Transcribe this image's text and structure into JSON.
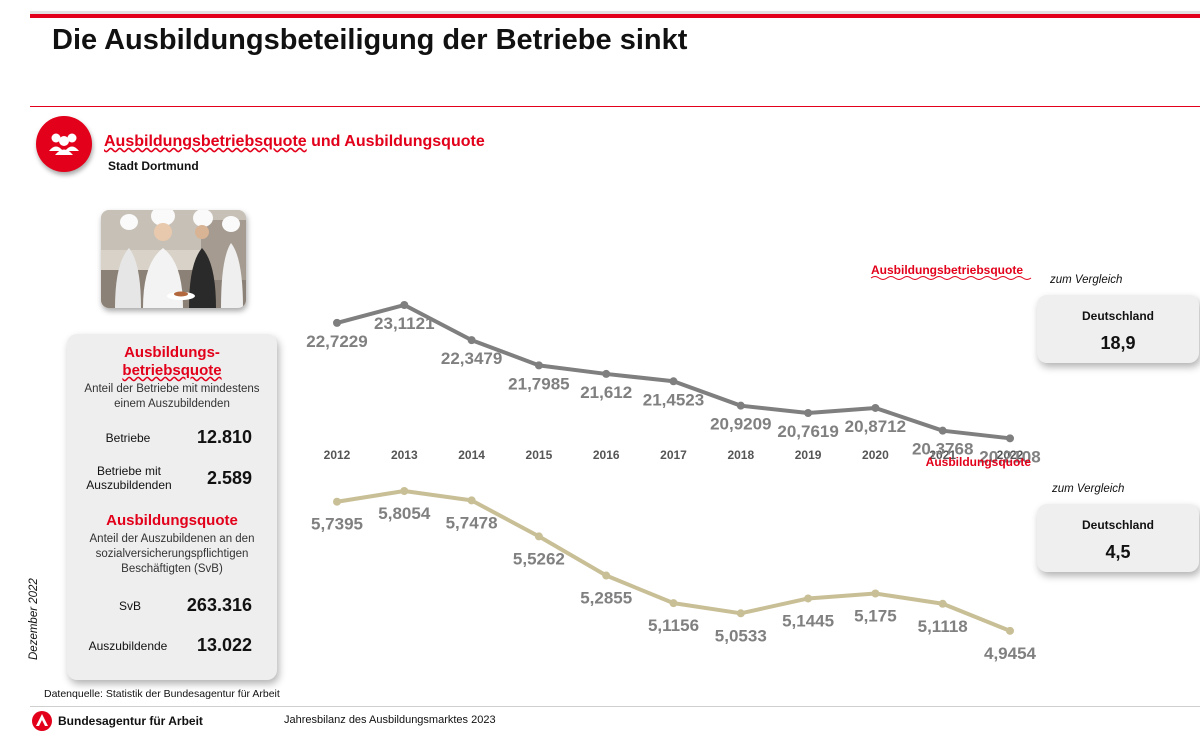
{
  "page": {
    "title": "Die Ausbildungsbeteiligung der Betriebe sinkt",
    "section_title_part1": "Ausbildungsbetriebsquote",
    "section_title_part2": " und Ausbildungsquote",
    "section_subtitle": "Stadt Dortmund",
    "date_note": "Dezember 2022",
    "source": "Datenquelle: Statistik der Bundesagentur für Arbeit",
    "footer_org": "Bundesagentur für Arbeit",
    "footer_doc": "Jahresbilanz des Ausbildungsmarktes 2023",
    "colors": {
      "brand_red": "#e2001a",
      "series1": "#7f7f7f",
      "series2": "#c9bf96"
    },
    "icons": [
      "people-group-icon",
      "chef-photo",
      "ba-logo-icon"
    ]
  },
  "panel": {
    "head1": "Ausbildungs-",
    "head1b": "betriebsquote",
    "desc1a": "Anteil der Betriebe mit mindestens",
    "desc1b": "einem Auszubildenden",
    "row1_label": "Betriebe",
    "row1_value": "12.810",
    "row2_label_a": "Betriebe mit",
    "row2_label_b": "Auszubildenden",
    "row2_value": "2.589",
    "head2": "Ausbildungsquote",
    "desc2a": "Anteil der Auszubildenen an den",
    "desc2b": "sozialversicherungspflichtigen",
    "desc2c": "Beschäftigten (SvB)",
    "row3_label": "SvB",
    "row3_value": "263.316",
    "row4_label": "Auszubildende",
    "row4_value": "13.022"
  },
  "comparison": [
    {
      "label": "zum Vergleich",
      "name": "Deutschland",
      "value": "18,9"
    },
    {
      "label": "zum Vergleich",
      "name": "Deutschland",
      "value": "4,5"
    }
  ],
  "chart_data": {
    "type": "line",
    "categories": [
      "2012",
      "2013",
      "2014",
      "2015",
      "2016",
      "2017",
      "2018",
      "2019",
      "2020",
      "2021",
      "2022"
    ],
    "series": [
      {
        "name": "Ausbildungsbetriebsquote",
        "values": [
          22.7229,
          23.1121,
          22.3479,
          21.7985,
          21.612,
          21.4523,
          20.9209,
          20.7619,
          20.8712,
          20.3768,
          20.2108
        ],
        "labels": [
          "22,7229",
          "23,1121",
          "22,3479",
          "21,7985",
          "21,612",
          "21,4523",
          "20,9209",
          "20,7619",
          "20,8712",
          "20,3768",
          "20,2108"
        ],
        "color": "#7f7f7f"
      },
      {
        "name": "Ausbildungsquote",
        "values": [
          5.7395,
          5.8054,
          5.7478,
          5.5262,
          5.2855,
          5.1156,
          5.0533,
          5.1445,
          5.175,
          5.1118,
          4.9454
        ],
        "labels": [
          "5,7395",
          "5,8054",
          "5,7478",
          "5,5262",
          "5,2855",
          "5,1156",
          "5,0533",
          "5,1445",
          "5,175",
          "5,1118",
          "4,9454"
        ],
        "color": "#c9bf96"
      }
    ],
    "xlabel": "",
    "ylabel": "",
    "grid": false,
    "axis_visible": false
  }
}
